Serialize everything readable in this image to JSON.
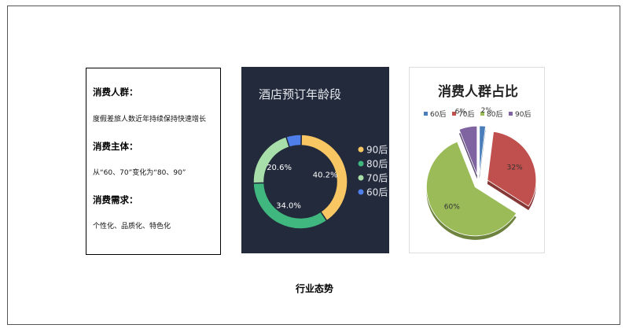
{
  "info_box": {
    "sections": [
      {
        "heading": "消费人群：",
        "text": "度假差旅人数近年持续保持快速增长"
      },
      {
        "heading": "消费主体：",
        "text": "从“60、70”变化为“80、90”"
      },
      {
        "heading": "消费需求：",
        "text": "个性化、品质化、特色化"
      }
    ]
  },
  "caption": "行业态势",
  "chart_data": [
    {
      "type": "pie",
      "variant": "donut",
      "title": "酒店预订年龄段",
      "legend_position": "right",
      "categories": [
        "90后",
        "80后",
        "70后",
        "60后"
      ],
      "values": [
        40.2,
        34.0,
        20.6,
        5.2
      ],
      "data_labels": [
        "40.2%",
        "34.0%",
        "20.6%",
        ""
      ],
      "colors": [
        "#f8c662",
        "#3fb77f",
        "#a7dea9",
        "#4f7fea"
      ],
      "background": "#232a3b"
    },
    {
      "type": "pie",
      "variant": "exploded-3d",
      "title": "消费人群占比",
      "legend_position": "top",
      "categories": [
        "60后",
        "70后",
        "80后",
        "90后"
      ],
      "values": [
        2,
        32,
        60,
        6
      ],
      "data_labels": [
        "2%",
        "32%",
        "60%",
        "6%"
      ],
      "colors": [
        "#4a7ebb",
        "#c0504d",
        "#9bbb59",
        "#8064a2"
      ]
    }
  ]
}
